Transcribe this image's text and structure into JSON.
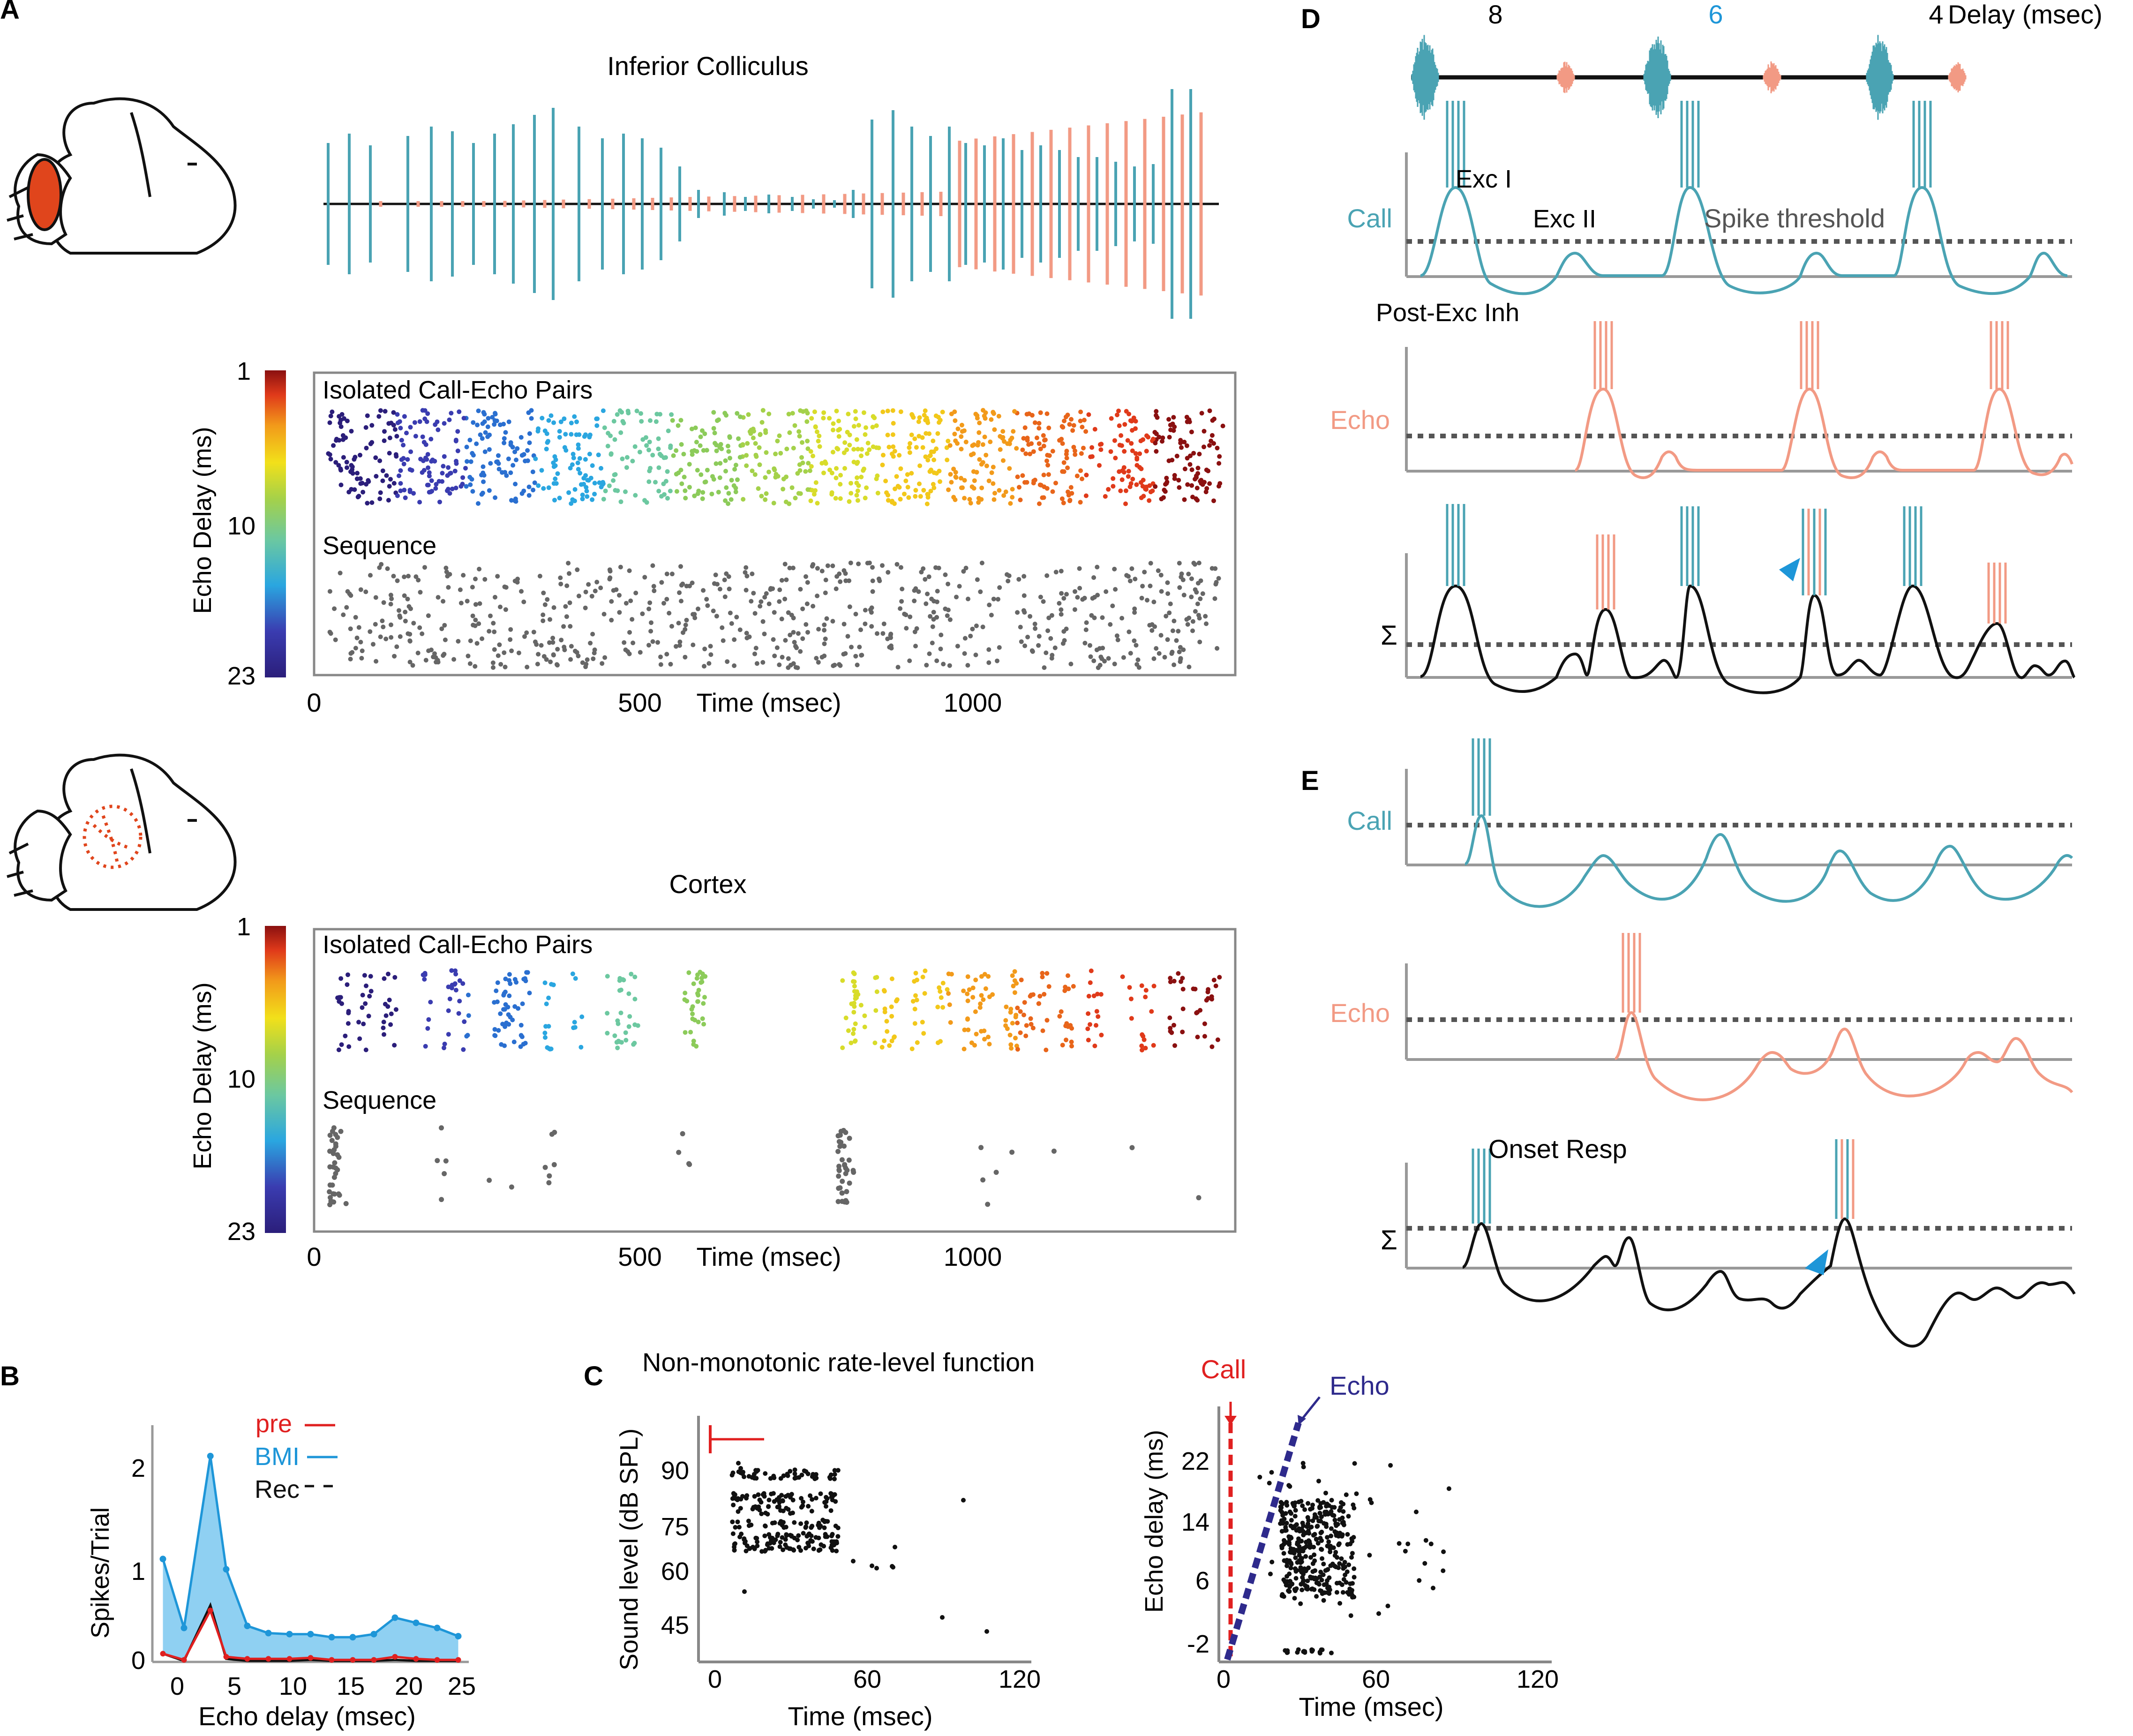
{
  "colors": {
    "teal": "#4AA3B3",
    "salmon": "#F29A84",
    "black": "#111111",
    "gray": "#999999",
    "dotgray": "#666666",
    "red": "#E02020",
    "navy": "#2E2A8C",
    "bmi": "#1E96D8",
    "bmiFill": "#8FD0F2",
    "brainRed": "#E0451C",
    "blueDelay": "#1E96D8"
  },
  "panelA": {
    "label": "A",
    "ic_title": "Inferior Colliculus",
    "cortex_title": "Cortex",
    "colorbar_label": "Echo Delay (ms)",
    "colorbar_ticks": [
      "1",
      "10",
      "23"
    ],
    "isolated_label": "Isolated Call-Echo Pairs",
    "sequence_label": "Sequence",
    "x_ticks": [
      "0",
      "500",
      "1000"
    ],
    "x_label": "Time (msec)"
  },
  "panelB": {
    "label": "B",
    "ylabel": "Spikes/Trial",
    "xlabel": "Echo delay (msec)",
    "yticks": [
      "0",
      "1",
      "2"
    ],
    "xticks": [
      "0",
      "5",
      "10",
      "15",
      "20",
      "25"
    ],
    "legend": [
      "pre",
      "BMI",
      "Rec"
    ],
    "chart_data": {
      "type": "line",
      "x": [
        -3,
        -1,
        1.5,
        3,
        5,
        7,
        9,
        11,
        13,
        15,
        17,
        19,
        21,
        23,
        25
      ],
      "series": [
        {
          "name": "BMI",
          "values": [
            1.0,
            0.33,
            2.0,
            0.9,
            0.35,
            0.28,
            0.27,
            0.27,
            0.24,
            0.24,
            0.27,
            0.43,
            0.38,
            0.33,
            0.25
          ]
        },
        {
          "name": "pre",
          "values": [
            0.08,
            0.02,
            0.5,
            0.05,
            0.03,
            0.03,
            0.03,
            0.04,
            0.02,
            0.02,
            0.02,
            0.05,
            0.03,
            0.02,
            0.02
          ]
        },
        {
          "name": "Rec",
          "values": [
            0.08,
            0.01,
            0.55,
            0.03,
            0.01,
            0.01,
            0.01,
            0.02,
            0.01,
            0.01,
            0.01,
            0.02,
            0.01,
            0.01,
            0.01
          ]
        }
      ],
      "xlim": [
        -4,
        26
      ],
      "ylim": [
        0,
        2.3
      ]
    }
  },
  "panelC": {
    "label": "C",
    "title": "Non-monotonic rate-level function",
    "left_ylabel": "Sound level (dB SPL)",
    "left_yticks": [
      "90",
      "75",
      "60",
      "45"
    ],
    "xticks": [
      "0",
      "60",
      "120"
    ],
    "xlabel": "Time (msec)",
    "right_ylabel": "Echo delay (ms)",
    "right_yticks": [
      "22",
      "14",
      "6",
      "-2"
    ],
    "call_label": "Call",
    "echo_label": "Echo"
  },
  "panelD": {
    "label": "D",
    "delays": [
      "8",
      "6",
      "4"
    ],
    "delay_label": "Delay (msec)",
    "call_label": "Call",
    "echo_label": "Echo",
    "exc1": "Exc I",
    "exc2": "Exc II",
    "threshold": "Spike threshold",
    "postexc": "Post-Exc Inh",
    "sigma": "Σ"
  },
  "panelE": {
    "label": "E",
    "call_label": "Call",
    "echo_label": "Echo",
    "onset": "Onset Resp",
    "sigma": "Σ"
  }
}
